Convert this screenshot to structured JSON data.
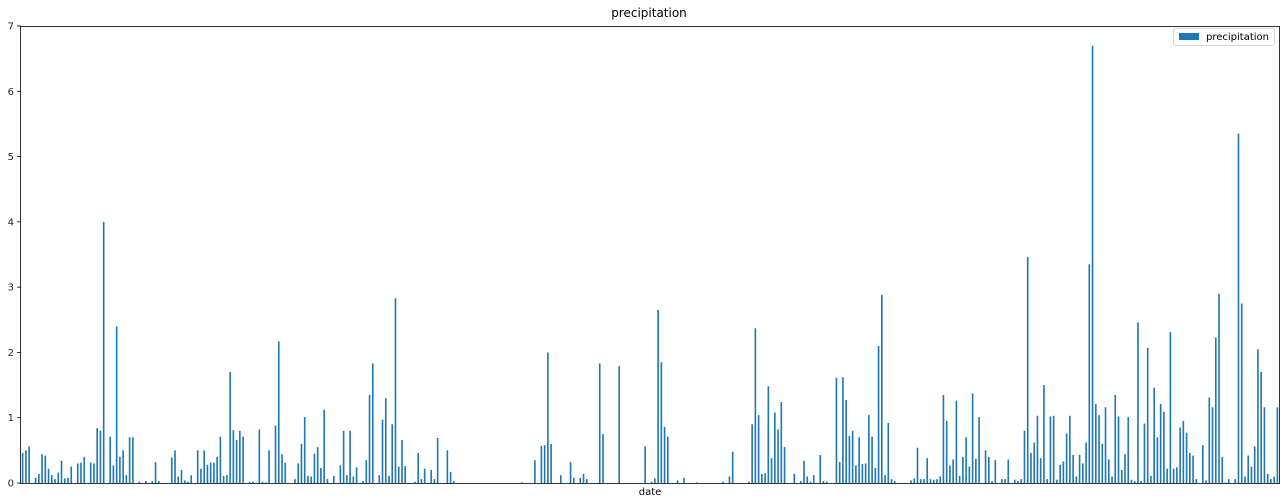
{
  "chart_data": {
    "type": "bar",
    "title": "precipitation",
    "xlabel": "date",
    "ylabel": "",
    "ylim": [
      0,
      7
    ],
    "yticks": [
      0,
      1,
      2,
      3,
      4,
      5,
      6,
      7
    ],
    "legend": {
      "entries": [
        "precipitation"
      ],
      "placement": "top-right"
    },
    "grid": false,
    "color": "#1f77b4",
    "series": [
      {
        "name": "precipitation",
        "values": [
          0.46,
          0.5,
          0.56,
          0.0,
          0.08,
          0.14,
          0.44,
          0.42,
          0.22,
          0.12,
          0.06,
          0.16,
          0.34,
          0.07,
          0.08,
          0.25,
          0.0,
          0.3,
          0.31,
          0.4,
          0.0,
          0.31,
          0.3,
          0.84,
          0.8,
          4.0,
          0.0,
          0.71,
          0.27,
          2.4,
          0.4,
          0.5,
          0.12,
          0.7,
          0.7,
          0.0,
          0.02,
          0.0,
          0.03,
          0.0,
          0.03,
          0.32,
          0.03,
          0.0,
          0.0,
          0.0,
          0.39,
          0.5,
          0.1,
          0.2,
          0.04,
          0.02,
          0.12,
          0.0,
          0.5,
          0.22,
          0.5,
          0.28,
          0.31,
          0.31,
          0.4,
          0.71,
          0.11,
          0.12,
          1.7,
          0.81,
          0.66,
          0.8,
          0.71,
          0.0,
          0.02,
          0.02,
          0.0,
          0.82,
          0.02,
          0.01,
          0.5,
          0.0,
          0.88,
          2.17,
          0.44,
          0.31,
          0.0,
          0.0,
          0.06,
          0.3,
          0.6,
          1.01,
          0.11,
          0.1,
          0.45,
          0.55,
          0.23,
          1.12,
          0.06,
          0.0,
          0.11,
          0.0,
          0.27,
          0.8,
          0.12,
          0.8,
          0.1,
          0.24,
          0.0,
          0.03,
          0.35,
          1.35,
          1.83,
          0.0,
          0.12,
          0.97,
          1.3,
          0.11,
          0.9,
          2.83,
          0.25,
          0.66,
          0.26,
          0.0,
          0.0,
          0.02,
          0.46,
          0.06,
          0.22,
          0.0,
          0.2,
          0.06,
          0.69,
          0.0,
          0.0,
          0.5,
          0.17,
          0.03,
          0.0,
          0.0,
          0.0,
          0.0,
          0.0,
          0.0,
          0.0,
          0.0,
          0.0,
          0.0,
          0.0,
          0.0,
          0.0,
          0.0,
          0.0,
          0.0,
          0.0,
          0.0,
          0.0,
          0.0,
          0.01,
          0.0,
          0.0,
          0.0,
          0.35,
          0.0,
          0.57,
          0.58,
          2.0,
          0.6,
          0.0,
          0.0,
          0.12,
          0.0,
          0.0,
          0.32,
          0.08,
          0.0,
          0.08,
          0.14,
          0.06,
          0.0,
          0.0,
          0.0,
          1.83,
          0.75,
          0.0,
          0.0,
          0.0,
          0.0,
          1.79,
          0.0,
          0.0,
          0.0,
          0.0,
          0.0,
          0.0,
          0.0,
          0.56,
          0.0,
          0.02,
          0.07,
          2.65,
          1.85,
          0.86,
          0.71,
          0.0,
          0.0,
          0.04,
          0.0,
          0.08,
          0.0,
          0.0,
          0.0,
          0.01,
          0.0,
          0.0,
          0.0,
          0.0,
          0.0,
          0.0,
          0.0,
          0.02,
          0.0,
          0.1,
          0.48,
          0.0,
          0.0,
          0.0,
          0.0,
          0.02,
          0.9,
          2.37,
          1.04,
          0.14,
          0.15,
          1.48,
          0.38,
          1.08,
          0.82,
          1.24,
          0.55,
          0.0,
          0.0,
          0.14,
          0.0,
          0.03,
          0.34,
          0.1,
          0.02,
          0.12,
          0.0,
          0.43,
          0.03,
          0.02,
          0.0,
          0.0,
          1.61,
          0.32,
          1.62,
          1.27,
          0.72,
          0.8,
          0.27,
          0.7,
          0.29,
          0.3,
          1.04,
          0.71,
          0.23,
          2.1,
          2.88,
          0.12,
          0.92,
          0.06,
          0.03,
          0.0,
          0.0,
          0.0,
          0.0,
          0.04,
          0.07,
          0.54,
          0.06,
          0.06,
          0.38,
          0.06,
          0.05,
          0.06,
          0.1,
          1.35,
          0.95,
          0.27,
          0.36,
          1.26,
          0.11,
          0.4,
          0.7,
          0.25,
          1.37,
          0.37,
          1.01,
          0.0,
          0.5,
          0.4,
          0.03,
          0.35,
          0.0,
          0.06,
          0.06,
          0.36,
          0.0,
          0.05,
          0.03,
          0.06,
          0.8,
          3.46,
          0.46,
          0.62,
          1.03,
          0.38,
          1.5,
          0.06,
          1.02,
          1.03,
          0.05,
          0.28,
          0.33,
          0.76,
          1.03,
          0.43,
          0.1,
          0.43,
          0.3,
          0.62,
          3.35,
          6.7,
          1.21,
          1.04,
          0.6,
          1.16,
          0.36,
          0.1,
          1.35,
          1.02,
          0.2,
          0.44,
          1.01,
          0.05,
          0.03,
          2.46,
          0.03,
          0.91,
          2.07,
          0.11,
          1.46,
          0.7,
          1.21,
          1.09,
          0.22,
          2.31,
          0.22,
          0.24,
          0.85,
          0.95,
          0.77,
          0.46,
          0.42,
          0.06,
          0.0,
          0.58,
          0.04,
          1.31,
          1.16,
          2.23,
          2.9,
          0.4,
          0.01,
          0.06,
          0.0,
          0.06,
          5.35,
          2.75,
          0.1,
          0.42,
          0.25,
          0.56,
          2.05,
          1.7,
          1.16,
          0.14,
          0.06,
          0.1,
          1.16
        ]
      }
    ]
  }
}
